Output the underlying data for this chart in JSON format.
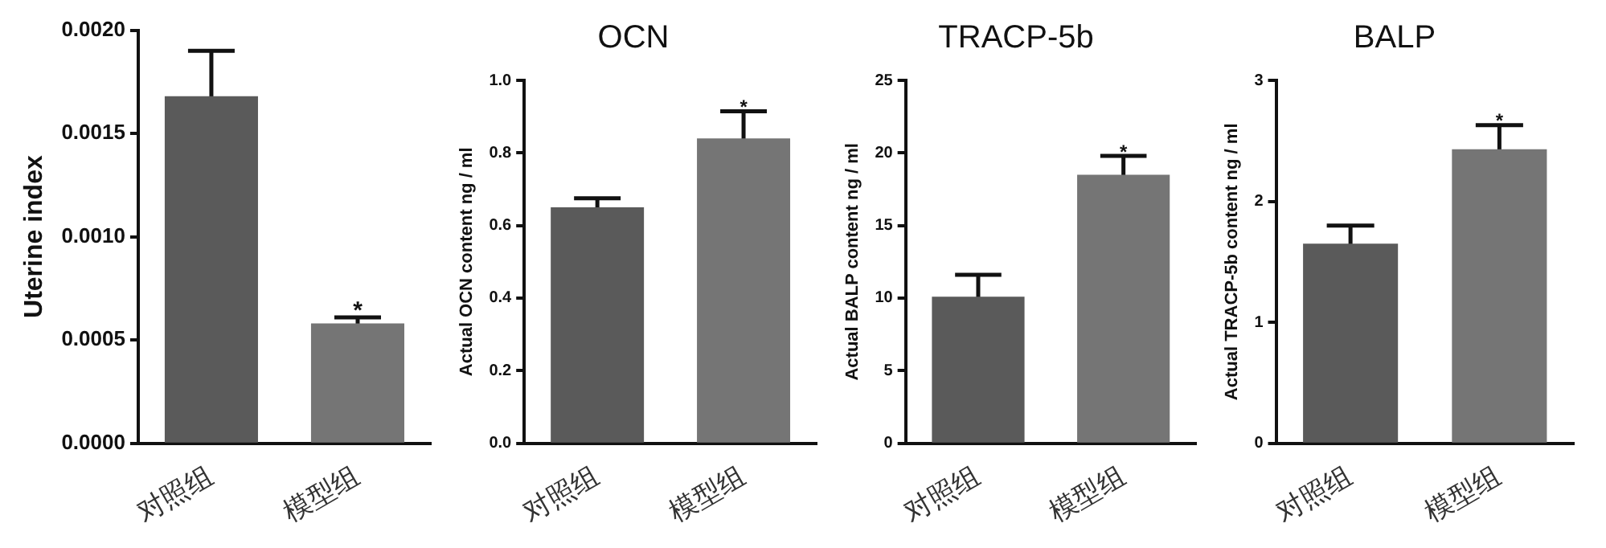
{
  "chart_data": [
    {
      "type": "bar",
      "ylabel": "Uterine index",
      "categories": [
        "对照组",
        "模型组"
      ],
      "values": [
        0.00168,
        0.00058
      ],
      "errors": [
        0.00022,
        3e-05
      ],
      "colors": [
        "#5a5a5a",
        "#757575"
      ],
      "ylim": [
        0,
        0.002
      ],
      "yticks": [
        {
          "value": 0,
          "label": "0.0000"
        },
        {
          "value": 0.0005,
          "label": "0.0005"
        },
        {
          "value": 0.001,
          "label": "0.0010"
        },
        {
          "value": 0.0015,
          "label": "0.0015"
        },
        {
          "value": 0.002,
          "label": "0.0020"
        }
      ],
      "grid": false,
      "legend": false,
      "annotations": [
        {
          "text": "*",
          "x": "模型组",
          "y": 0.00061
        }
      ]
    },
    {
      "type": "bar",
      "title": "OCN",
      "ylabel": "Actual OCN content ng / ml",
      "categories": [
        "对照组",
        "模型组"
      ],
      "values": [
        0.65,
        0.84
      ],
      "errors": [
        0.025,
        0.075
      ],
      "colors": [
        "#5a5a5a",
        "#757575"
      ],
      "ylim": [
        0,
        1
      ],
      "yticks": [
        {
          "value": 0,
          "label": "0.0"
        },
        {
          "value": 0.2,
          "label": "0.2"
        },
        {
          "value": 0.4,
          "label": "0.4"
        },
        {
          "value": 0.6,
          "label": "0.6"
        },
        {
          "value": 0.8,
          "label": "0.8"
        },
        {
          "value": 1,
          "label": "1.0"
        }
      ],
      "grid": false,
      "legend": false,
      "annotations": [
        {
          "text": "*",
          "x": "模型组",
          "y": 0.915
        }
      ]
    },
    {
      "type": "bar",
      "title": "TRACP-5b",
      "ylabel": "Actual BALP content ng / ml",
      "categories": [
        "对照组",
        "模型组"
      ],
      "values": [
        10.1,
        18.5
      ],
      "errors": [
        1.5,
        1.3
      ],
      "colors": [
        "#5a5a5a",
        "#757575"
      ],
      "ylim": [
        0,
        25
      ],
      "yticks": [
        0,
        5,
        10,
        15,
        20,
        25
      ],
      "grid": false,
      "legend": false,
      "annotations": [
        {
          "text": "*",
          "x": "模型组",
          "y": 19.8
        }
      ]
    },
    {
      "type": "bar",
      "title": "BALP",
      "ylabel": "Actual TRACP-5b content ng / ml",
      "categories": [
        "对照组",
        "模型组"
      ],
      "values": [
        1.65,
        2.43
      ],
      "errors": [
        0.15,
        0.2
      ],
      "colors": [
        "#5a5a5a",
        "#757575"
      ],
      "ylim": [
        0,
        3
      ],
      "yticks": [
        0,
        1,
        2,
        3
      ],
      "grid": false,
      "legend": false,
      "annotations": [
        {
          "text": "*",
          "x": "模型组",
          "y": 2.63
        }
      ]
    }
  ]
}
